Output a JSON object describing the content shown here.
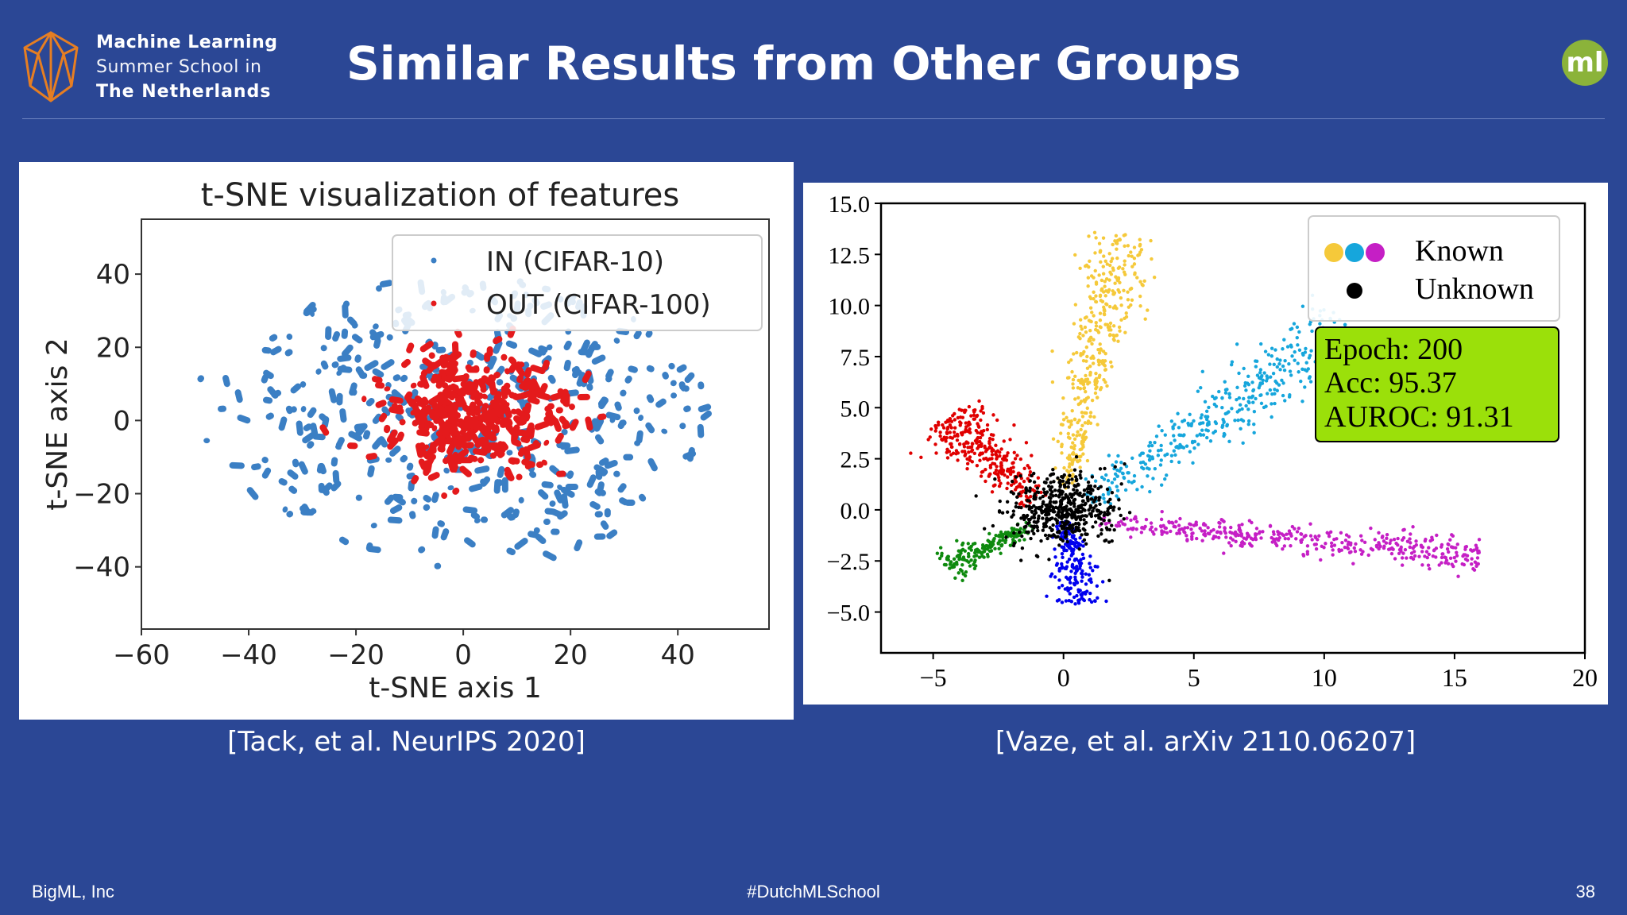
{
  "header": {
    "logo": {
      "line1": "Machine Learning",
      "line2": "Summer School in",
      "line3": "The Netherlands",
      "accent": "#e67e22"
    },
    "title": "Similar Results from Other Groups",
    "badge_text": "ml",
    "badge_color": "#8bb33a"
  },
  "chart_data": [
    {
      "type": "scatter",
      "title": "t-SNE visualization of features",
      "xlabel": "t-SNE axis 1",
      "ylabel": "t-SNE axis 2",
      "xlim": [
        -60,
        57
      ],
      "ylim": [
        -57,
        55
      ],
      "xticks": [
        -60,
        -40,
        -20,
        0,
        20,
        40
      ],
      "yticks": [
        40,
        20,
        0,
        -20,
        -40
      ],
      "legend_position": "top-right",
      "series": [
        {
          "name": "IN (CIFAR-10)",
          "color": "#3b7fc4",
          "center": [
            0,
            0
          ],
          "spread": [
            28,
            24
          ],
          "count": 420
        },
        {
          "name": "OUT (CIFAR-100)",
          "color": "#e41a1c",
          "center": [
            2,
            2
          ],
          "spread": [
            16,
            14
          ],
          "count": 380
        }
      ]
    },
    {
      "type": "scatter",
      "xlim": [
        -7,
        20
      ],
      "ylim": [
        -7,
        15
      ],
      "xticks": [
        -5,
        0,
        5,
        10,
        15,
        20
      ],
      "yticks": [
        "15.0",
        "12.5",
        "10.0",
        "7.5",
        "5.0",
        "2.5",
        "0.0",
        "−2.5",
        "−5.0"
      ],
      "legend_position": "top-right",
      "legend": [
        {
          "name": "Known",
          "colors": [
            "#f5c93a",
            "#16a6dc",
            "#c51fc5"
          ]
        },
        {
          "name": "Unknown",
          "colors": [
            "#000000"
          ]
        }
      ],
      "annotation": {
        "lines": [
          "Epoch: 200",
          "Acc: 95.37",
          "AUROC: 91.31"
        ],
        "bg": "#9be00a"
      },
      "clusters": [
        {
          "label": "known-yellow",
          "color": "#f5c93a",
          "from": [
            0,
            1
          ],
          "to": [
            2.3,
            13.5
          ],
          "width": 0.5,
          "count": 420
        },
        {
          "label": "known-cyan",
          "color": "#16a6dc",
          "from": [
            1,
            0.5
          ],
          "to": [
            11,
            9
          ],
          "width": 0.7,
          "count": 420
        },
        {
          "label": "known-magenta",
          "color": "#c51fc5",
          "from": [
            1,
            -0.6
          ],
          "to": [
            16,
            -2.2
          ],
          "width": 0.35,
          "count": 420
        },
        {
          "label": "known-red",
          "color": "#e00000",
          "from": [
            -1,
            0.3
          ],
          "to": [
            -4.5,
            4.6
          ],
          "width": 0.6,
          "count": 320
        },
        {
          "label": "known-green",
          "color": "#0e8a0e",
          "from": [
            -1.2,
            -0.8
          ],
          "to": [
            -4.5,
            -2.8
          ],
          "width": 0.3,
          "count": 180
        },
        {
          "label": "known-blue",
          "color": "#0000ee",
          "from": [
            0.1,
            -0.5
          ],
          "to": [
            0.6,
            -4.6
          ],
          "width": 0.35,
          "count": 200
        },
        {
          "label": "unknown-black",
          "color": "#000000",
          "from": [
            -0.2,
            0
          ],
          "to": [
            0.2,
            0
          ],
          "width": 1.0,
          "count": 500
        }
      ]
    }
  ],
  "captions": {
    "left": "[Tack, et al. NeurIPS 2020]",
    "right": "[Vaze, et al. arXiv 2110.06207]"
  },
  "footer": {
    "left": "BigML, Inc",
    "center": "#DutchMLSchool",
    "right": "38"
  }
}
